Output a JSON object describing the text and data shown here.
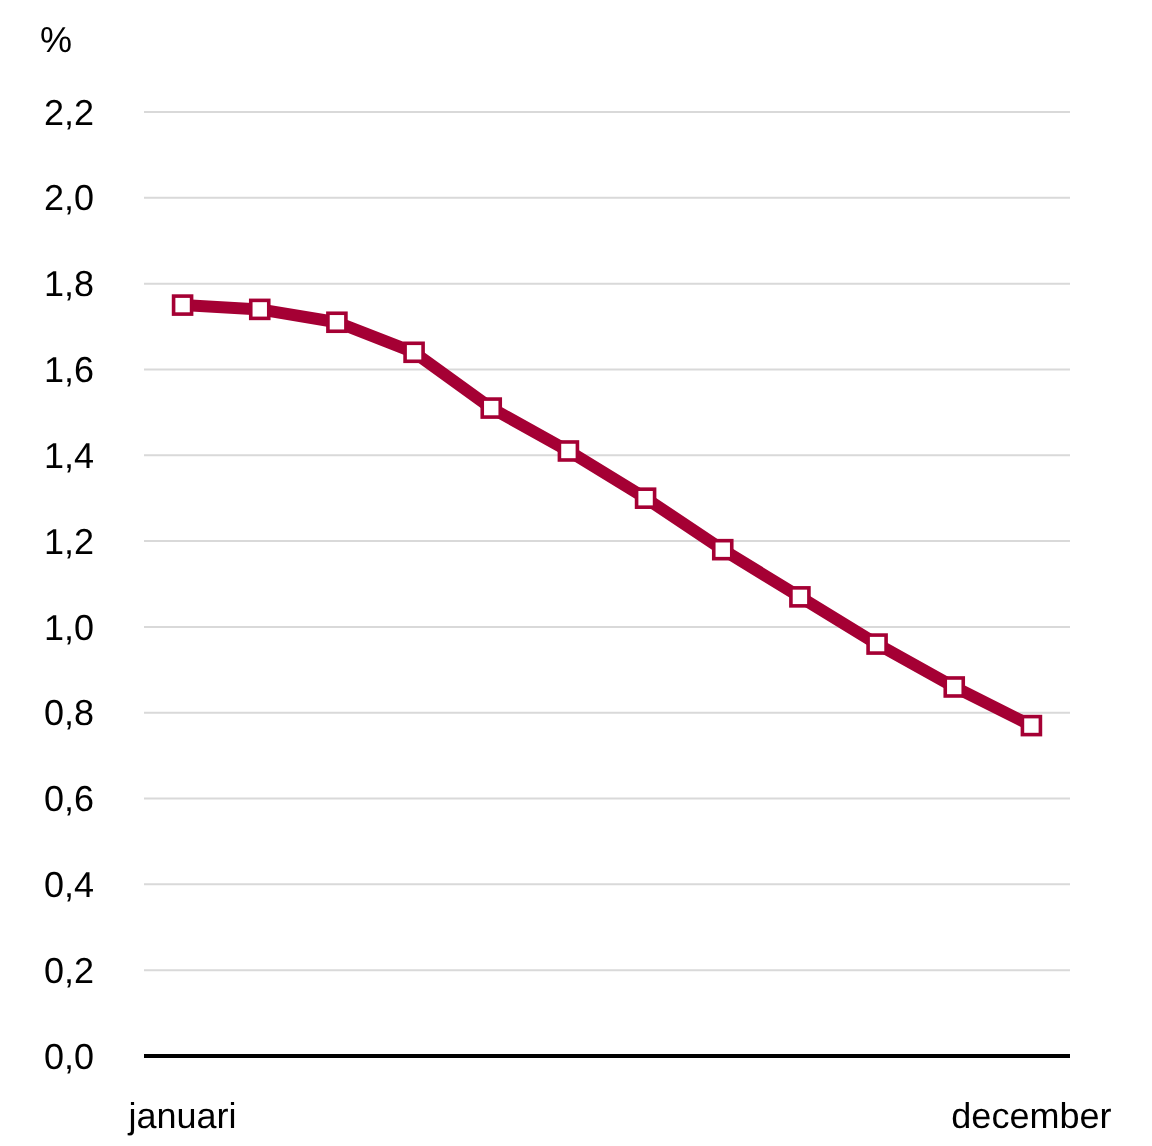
{
  "chart_data": {
    "type": "line",
    "ylabel": "%",
    "categories": [
      "januari",
      null,
      null,
      null,
      null,
      null,
      null,
      null,
      null,
      null,
      null,
      "december"
    ],
    "series": [
      {
        "color": "#a50034",
        "values": [
          1.75,
          1.74,
          1.71,
          1.64,
          1.51,
          1.41,
          1.3,
          1.18,
          1.07,
          0.96,
          0.86,
          0.77
        ]
      }
    ],
    "ylim": [
      0,
      2.2
    ],
    "yticks": [
      {
        "value": 0,
        "label": "0,0"
      },
      {
        "value": 0.2,
        "label": "0,2"
      },
      {
        "value": 0.4,
        "label": "0,4"
      },
      {
        "value": 0.6,
        "label": "0,6"
      },
      {
        "value": 0.8,
        "label": "0,8"
      },
      {
        "value": 1.0,
        "label": "1,0"
      },
      {
        "value": 1.2,
        "label": "1,2"
      },
      {
        "value": 1.4,
        "label": "1,4"
      },
      {
        "value": 1.6,
        "label": "1,6"
      },
      {
        "value": 1.8,
        "label": "1,8"
      },
      {
        "value": 2.0,
        "label": "2,0"
      },
      {
        "value": 2.2,
        "label": "2,2"
      }
    ],
    "grid": "y",
    "marker": "square",
    "line_style": "solid"
  }
}
